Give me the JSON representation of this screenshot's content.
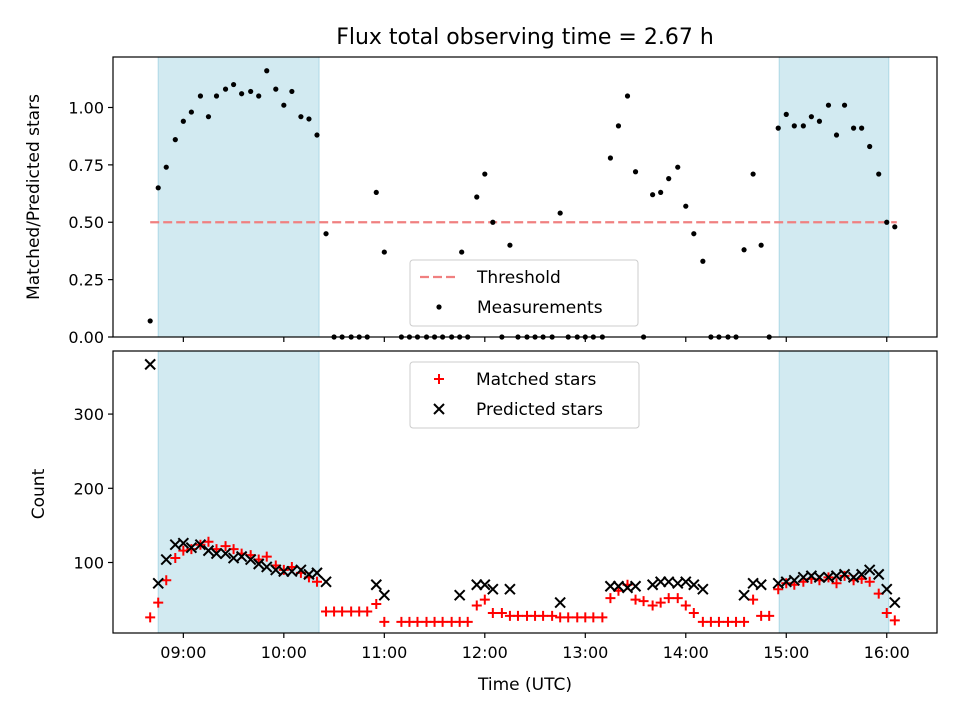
{
  "figure": {
    "title": "Flux total observing time = 2.67 h"
  },
  "colors": {
    "shade": "#add8e6",
    "threshold": "#f08080",
    "measurement": "#000000",
    "matched": "#ff0000",
    "predicted": "#000000"
  },
  "chart_data": [
    {
      "type": "scatter",
      "name": "ratio-panel",
      "xlabel": "",
      "ylabel": "Matched/Predicted stars",
      "xlim": [
        8.3,
        16.5
      ],
      "ylim": [
        0.0,
        1.22
      ],
      "yticks": [
        0.0,
        0.25,
        0.5,
        0.75,
        1.0
      ],
      "ytick_labels": [
        "0.00",
        "0.25",
        "0.50",
        "0.75",
        "1.00"
      ],
      "xticks": [
        9,
        10,
        11,
        12,
        13,
        14,
        15,
        16
      ],
      "show_xtick_labels": false,
      "shaded_intervals": [
        [
          8.75,
          10.35
        ],
        [
          14.93,
          16.02
        ]
      ],
      "threshold": {
        "label": "Threshold",
        "y": 0.5,
        "x": [
          8.67,
          16.1
        ]
      },
      "legend": {
        "placement": "lower-center",
        "entries": [
          "Threshold",
          "Measurements"
        ]
      },
      "series": [
        {
          "name": "Measurements",
          "points": [
            [
              8.67,
              0.07
            ],
            [
              8.75,
              0.65
            ],
            [
              8.83,
              0.74
            ],
            [
              8.92,
              0.86
            ],
            [
              9.0,
              0.94
            ],
            [
              9.08,
              0.98
            ],
            [
              9.17,
              1.05
            ],
            [
              9.25,
              0.96
            ],
            [
              9.33,
              1.05
            ],
            [
              9.42,
              1.08
            ],
            [
              9.5,
              1.1
            ],
            [
              9.58,
              1.06
            ],
            [
              9.67,
              1.07
            ],
            [
              9.75,
              1.05
            ],
            [
              9.83,
              1.16
            ],
            [
              9.92,
              1.08
            ],
            [
              10.0,
              1.01
            ],
            [
              10.08,
              1.07
            ],
            [
              10.17,
              0.96
            ],
            [
              10.25,
              0.95
            ],
            [
              10.33,
              0.88
            ],
            [
              10.42,
              0.45
            ],
            [
              10.5,
              0.0
            ],
            [
              10.58,
              0.0
            ],
            [
              10.67,
              0.0
            ],
            [
              10.75,
              0.0
            ],
            [
              10.83,
              0.0
            ],
            [
              10.92,
              0.63
            ],
            [
              11.0,
              0.37
            ],
            [
              11.17,
              0.0
            ],
            [
              11.25,
              0.0
            ],
            [
              11.33,
              0.0
            ],
            [
              11.42,
              0.0
            ],
            [
              11.5,
              0.0
            ],
            [
              11.58,
              0.0
            ],
            [
              11.67,
              0.0
            ],
            [
              11.75,
              0.0
            ],
            [
              11.77,
              0.37
            ],
            [
              11.83,
              0.0
            ],
            [
              11.92,
              0.61
            ],
            [
              12.0,
              0.71
            ],
            [
              12.08,
              0.5
            ],
            [
              12.17,
              0.0
            ],
            [
              12.25,
              0.4
            ],
            [
              12.33,
              0.0
            ],
            [
              12.42,
              0.0
            ],
            [
              12.5,
              0.0
            ],
            [
              12.58,
              0.0
            ],
            [
              12.67,
              0.0
            ],
            [
              12.75,
              0.54
            ],
            [
              12.83,
              0.0
            ],
            [
              12.92,
              0.0
            ],
            [
              13.0,
              0.0
            ],
            [
              13.08,
              0.0
            ],
            [
              13.17,
              0.0
            ],
            [
              13.25,
              0.78
            ],
            [
              13.33,
              0.92
            ],
            [
              13.42,
              1.05
            ],
            [
              13.5,
              0.72
            ],
            [
              13.58,
              0.0
            ],
            [
              13.67,
              0.62
            ],
            [
              13.75,
              0.63
            ],
            [
              13.83,
              0.69
            ],
            [
              13.92,
              0.74
            ],
            [
              14.0,
              0.57
            ],
            [
              14.08,
              0.45
            ],
            [
              14.17,
              0.33
            ],
            [
              14.25,
              0.0
            ],
            [
              14.33,
              0.0
            ],
            [
              14.42,
              0.0
            ],
            [
              14.5,
              0.0
            ],
            [
              14.58,
              0.38
            ],
            [
              14.67,
              0.71
            ],
            [
              14.75,
              0.4
            ],
            [
              14.83,
              0.0
            ],
            [
              14.92,
              0.91
            ],
            [
              15.0,
              0.97
            ],
            [
              15.08,
              0.92
            ],
            [
              15.17,
              0.92
            ],
            [
              15.25,
              0.96
            ],
            [
              15.33,
              0.94
            ],
            [
              15.42,
              1.01
            ],
            [
              15.5,
              0.88
            ],
            [
              15.58,
              1.01
            ],
            [
              15.67,
              0.91
            ],
            [
              15.75,
              0.91
            ],
            [
              15.83,
              0.83
            ],
            [
              15.92,
              0.71
            ],
            [
              16.0,
              0.5
            ],
            [
              16.08,
              0.48
            ]
          ]
        }
      ]
    },
    {
      "type": "scatter",
      "name": "count-panel",
      "xlabel": "Time (UTC)",
      "ylabel": "Count",
      "xlim": [
        8.3,
        16.5
      ],
      "ylim": [
        5,
        385
      ],
      "yticks": [
        100,
        200,
        300
      ],
      "ytick_labels": [
        "100",
        "200",
        "300"
      ],
      "xticks": [
        9,
        10,
        11,
        12,
        13,
        14,
        15,
        16
      ],
      "xtick_labels": [
        "09:00",
        "10:00",
        "11:00",
        "12:00",
        "13:00",
        "14:00",
        "15:00",
        "16:00"
      ],
      "shaded_intervals": [
        [
          8.75,
          10.35
        ],
        [
          14.93,
          16.02
        ]
      ],
      "legend": {
        "placement": "top-center",
        "entries": [
          "Matched stars",
          "Predicted stars"
        ]
      },
      "series": [
        {
          "name": "Matched stars",
          "marker": "+",
          "points": [
            [
              8.67,
              26
            ],
            [
              8.75,
              46
            ],
            [
              8.83,
              76
            ],
            [
              8.92,
              106
            ],
            [
              9.0,
              116
            ],
            [
              9.08,
              118
            ],
            [
              9.17,
              124
            ],
            [
              9.25,
              128
            ],
            [
              9.33,
              118
            ],
            [
              9.42,
              122
            ],
            [
              9.5,
              118
            ],
            [
              9.58,
              112
            ],
            [
              9.67,
              110
            ],
            [
              9.75,
              104
            ],
            [
              9.83,
              108
            ],
            [
              9.92,
              96
            ],
            [
              10.0,
              90
            ],
            [
              10.08,
              94
            ],
            [
              10.17,
              86
            ],
            [
              10.25,
              80
            ],
            [
              10.33,
              74
            ],
            [
              10.42,
              34
            ],
            [
              10.5,
              34
            ],
            [
              10.58,
              34
            ],
            [
              10.67,
              34
            ],
            [
              10.75,
              34
            ],
            [
              10.83,
              34
            ],
            [
              10.92,
              44
            ],
            [
              11.0,
              20
            ],
            [
              11.17,
              20
            ],
            [
              11.25,
              20
            ],
            [
              11.33,
              20
            ],
            [
              11.42,
              20
            ],
            [
              11.5,
              20
            ],
            [
              11.58,
              20
            ],
            [
              11.67,
              20
            ],
            [
              11.75,
              20
            ],
            [
              11.83,
              20
            ],
            [
              11.92,
              42
            ],
            [
              12.0,
              50
            ],
            [
              12.08,
              32
            ],
            [
              12.17,
              32
            ],
            [
              12.25,
              28
            ],
            [
              12.33,
              28
            ],
            [
              12.42,
              28
            ],
            [
              12.5,
              28
            ],
            [
              12.58,
              28
            ],
            [
              12.67,
              28
            ],
            [
              12.75,
              26
            ],
            [
              12.83,
              26
            ],
            [
              12.92,
              26
            ],
            [
              13.0,
              26
            ],
            [
              13.08,
              26
            ],
            [
              13.17,
              26
            ],
            [
              13.25,
              52
            ],
            [
              13.33,
              62
            ],
            [
              13.42,
              70
            ],
            [
              13.5,
              50
            ],
            [
              13.58,
              48
            ],
            [
              13.67,
              42
            ],
            [
              13.75,
              46
            ],
            [
              13.83,
              52
            ],
            [
              13.92,
              52
            ],
            [
              14.0,
              42
            ],
            [
              14.08,
              32
            ],
            [
              14.17,
              20
            ],
            [
              14.25,
              20
            ],
            [
              14.33,
              20
            ],
            [
              14.42,
              20
            ],
            [
              14.5,
              20
            ],
            [
              14.58,
              20
            ],
            [
              14.67,
              50
            ],
            [
              14.75,
              28
            ],
            [
              14.83,
              28
            ],
            [
              14.92,
              64
            ],
            [
              15.0,
              72
            ],
            [
              15.08,
              70
            ],
            [
              15.17,
              74
            ],
            [
              15.25,
              78
            ],
            [
              15.33,
              76
            ],
            [
              15.42,
              80
            ],
            [
              15.5,
              72
            ],
            [
              15.58,
              82
            ],
            [
              15.67,
              76
            ],
            [
              15.75,
              78
            ],
            [
              15.83,
              74
            ],
            [
              15.92,
              58
            ],
            [
              16.0,
              32
            ],
            [
              16.08,
              22
            ]
          ]
        },
        {
          "name": "Predicted stars",
          "marker": "x",
          "points": [
            [
              8.67,
              367
            ],
            [
              8.75,
              72
            ],
            [
              8.83,
              104
            ],
            [
              8.92,
              124
            ],
            [
              9.0,
              126
            ],
            [
              9.08,
              120
            ],
            [
              9.17,
              124
            ],
            [
              9.25,
              116
            ],
            [
              9.33,
              112
            ],
            [
              9.42,
              112
            ],
            [
              9.5,
              106
            ],
            [
              9.58,
              108
            ],
            [
              9.67,
              104
            ],
            [
              9.75,
              98
            ],
            [
              9.83,
              94
            ],
            [
              9.92,
              90
            ],
            [
              10.0,
              88
            ],
            [
              10.08,
              88
            ],
            [
              10.17,
              90
            ],
            [
              10.25,
              84
            ],
            [
              10.33,
              86
            ],
            [
              10.42,
              74
            ],
            [
              10.92,
              70
            ],
            [
              11.0,
              56
            ],
            [
              11.75,
              56
            ],
            [
              11.92,
              70
            ],
            [
              12.0,
              70
            ],
            [
              12.08,
              64
            ],
            [
              12.25,
              64
            ],
            [
              12.75,
              46
            ],
            [
              13.25,
              68
            ],
            [
              13.33,
              68
            ],
            [
              13.42,
              66
            ],
            [
              13.5,
              68
            ],
            [
              13.67,
              70
            ],
            [
              13.75,
              74
            ],
            [
              13.83,
              74
            ],
            [
              13.92,
              72
            ],
            [
              14.0,
              74
            ],
            [
              14.08,
              70
            ],
            [
              14.17,
              64
            ],
            [
              14.58,
              56
            ],
            [
              14.67,
              72
            ],
            [
              14.75,
              70
            ],
            [
              14.92,
              72
            ],
            [
              15.0,
              74
            ],
            [
              15.08,
              76
            ],
            [
              15.17,
              80
            ],
            [
              15.25,
              82
            ],
            [
              15.33,
              80
            ],
            [
              15.42,
              80
            ],
            [
              15.5,
              82
            ],
            [
              15.58,
              84
            ],
            [
              15.67,
              80
            ],
            [
              15.75,
              84
            ],
            [
              15.83,
              90
            ],
            [
              15.92,
              84
            ],
            [
              16.0,
              64
            ],
            [
              16.08,
              46
            ]
          ]
        }
      ]
    }
  ]
}
